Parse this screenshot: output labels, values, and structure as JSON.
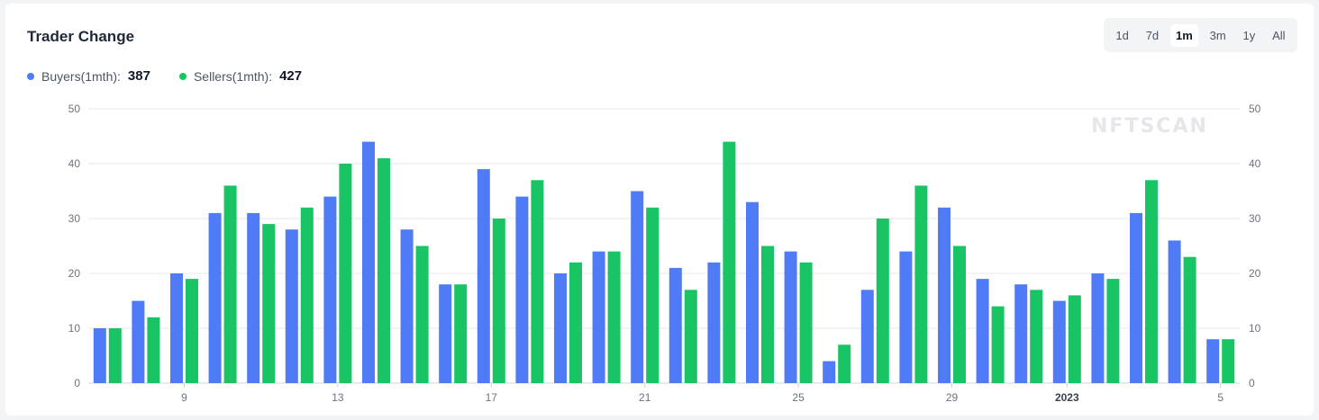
{
  "title": "Trader Change",
  "range_options": [
    "1d",
    "7d",
    "1m",
    "3m",
    "1y",
    "All"
  ],
  "selected_range": "1m",
  "legend": [
    {
      "label": "Buyers(1mth):",
      "value": "387",
      "color": "#4f7cf6"
    },
    {
      "label": "Sellers(1mth):",
      "value": "427",
      "color": "#18c463"
    }
  ],
  "watermark": "NFTSCAN",
  "chart_data": {
    "type": "bar",
    "categories": [
      "2022-12-07",
      "2022-12-08",
      "2022-12-09",
      "2022-12-10",
      "2022-12-11",
      "2022-12-12",
      "2022-12-13",
      "2022-12-14",
      "2022-12-15",
      "2022-12-16",
      "2022-12-17",
      "2022-12-18",
      "2022-12-19",
      "2022-12-20",
      "2022-12-21",
      "2022-12-22",
      "2022-12-23",
      "2022-12-24",
      "2022-12-25",
      "2022-12-26",
      "2022-12-27",
      "2022-12-28",
      "2022-12-29",
      "2022-12-30",
      "2022-12-31",
      "2023-01-01",
      "2023-01-02",
      "2023-01-03",
      "2023-01-04",
      "2023-01-05"
    ],
    "series": [
      {
        "name": "Buyers(1mth)",
        "color": "#4f7cf6",
        "values": [
          10,
          15,
          20,
          31,
          31,
          28,
          34,
          44,
          28,
          18,
          39,
          34,
          20,
          24,
          35,
          21,
          22,
          33,
          24,
          4,
          17,
          24,
          32,
          19,
          18,
          15,
          20,
          31,
          26,
          8
        ]
      },
      {
        "name": "Sellers(1mth)",
        "color": "#18c463",
        "values": [
          10,
          12,
          19,
          36,
          29,
          32,
          40,
          41,
          25,
          18,
          30,
          37,
          22,
          24,
          32,
          17,
          44,
          25,
          22,
          7,
          30,
          36,
          25,
          14,
          17,
          16,
          19,
          37,
          23,
          8
        ]
      }
    ],
    "x_tick_labels": [
      {
        "category": "2022-12-09",
        "label": "9"
      },
      {
        "category": "2022-12-13",
        "label": "13"
      },
      {
        "category": "2022-12-17",
        "label": "17"
      },
      {
        "category": "2022-12-21",
        "label": "21"
      },
      {
        "category": "2022-12-25",
        "label": "25"
      },
      {
        "category": "2022-12-29",
        "label": "29"
      },
      {
        "category": "2023-01-01",
        "label": "2023",
        "bold": true
      },
      {
        "category": "2023-01-05",
        "label": "5"
      }
    ],
    "ylim": [
      0,
      50
    ],
    "y_ticks": [
      0,
      10,
      20,
      30,
      40,
      50
    ],
    "grid": true,
    "dual_y_axis": true
  }
}
